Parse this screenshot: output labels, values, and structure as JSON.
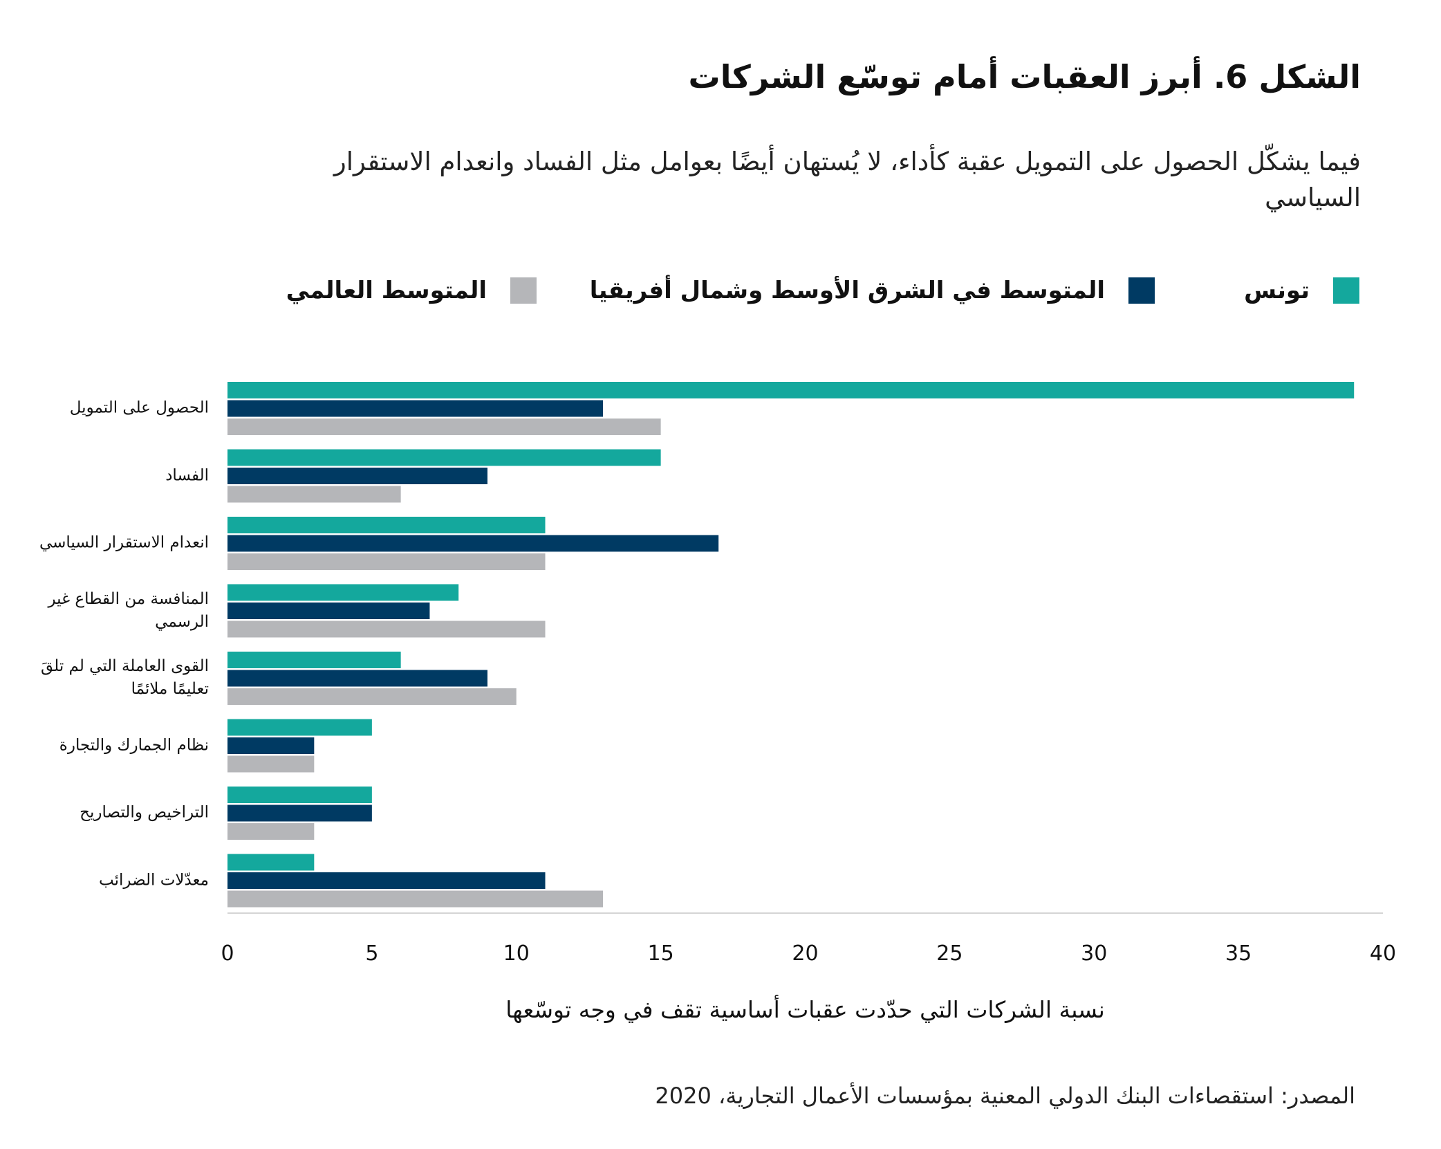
{
  "title": "الشكل 6. أبرز العقبات أمام توسّع الشركات",
  "subtitle": "فيما يشكّل الحصول على التمويل عقبة كأداء، لا يُستهان أيضًا بعوامل مثل الفساد وانعدام الاستقرار السياسي",
  "source": "المصدر: استقصاءات البنك الدولي المعنية بمؤسسات الأعمال التجارية، 2020",
  "chart_data": {
    "type": "bar",
    "orientation": "horizontal",
    "categories": [
      "الحصول على التمويل",
      "الفساد",
      "انعدام الاستقرار السياسي",
      "المنافسة من القطاع غير الرسمي",
      "القوى العاملة التي لم تلقَ تعليمًا ملائمًا",
      "نظام الجمارك والتجارة",
      "التراخيص والتصاريح",
      "معدّلات الضرائب"
    ],
    "series": [
      {
        "name": "تونس",
        "color": "#14a89d",
        "values": [
          39,
          15,
          11,
          8,
          6,
          5,
          5,
          3
        ]
      },
      {
        "name": "المتوسط في الشرق الأوسط وشمال أفريقيا",
        "color": "#003a63",
        "values": [
          13,
          9,
          17,
          7,
          9,
          3,
          5,
          11
        ]
      },
      {
        "name": "المتوسط العالمي",
        "color": "#b5b6b9",
        "values": [
          15,
          6,
          11,
          11,
          10,
          3,
          3,
          13
        ]
      }
    ],
    "xlabel": "نسبة الشركات التي حدّدت عقبات أساسية تقف في وجه توسّعها",
    "xlim": [
      0,
      40
    ],
    "xticks": [
      "0",
      "5",
      "10",
      "15",
      "20",
      "25",
      "30",
      "35",
      "40"
    ],
    "grid": false,
    "legend": "top"
  }
}
